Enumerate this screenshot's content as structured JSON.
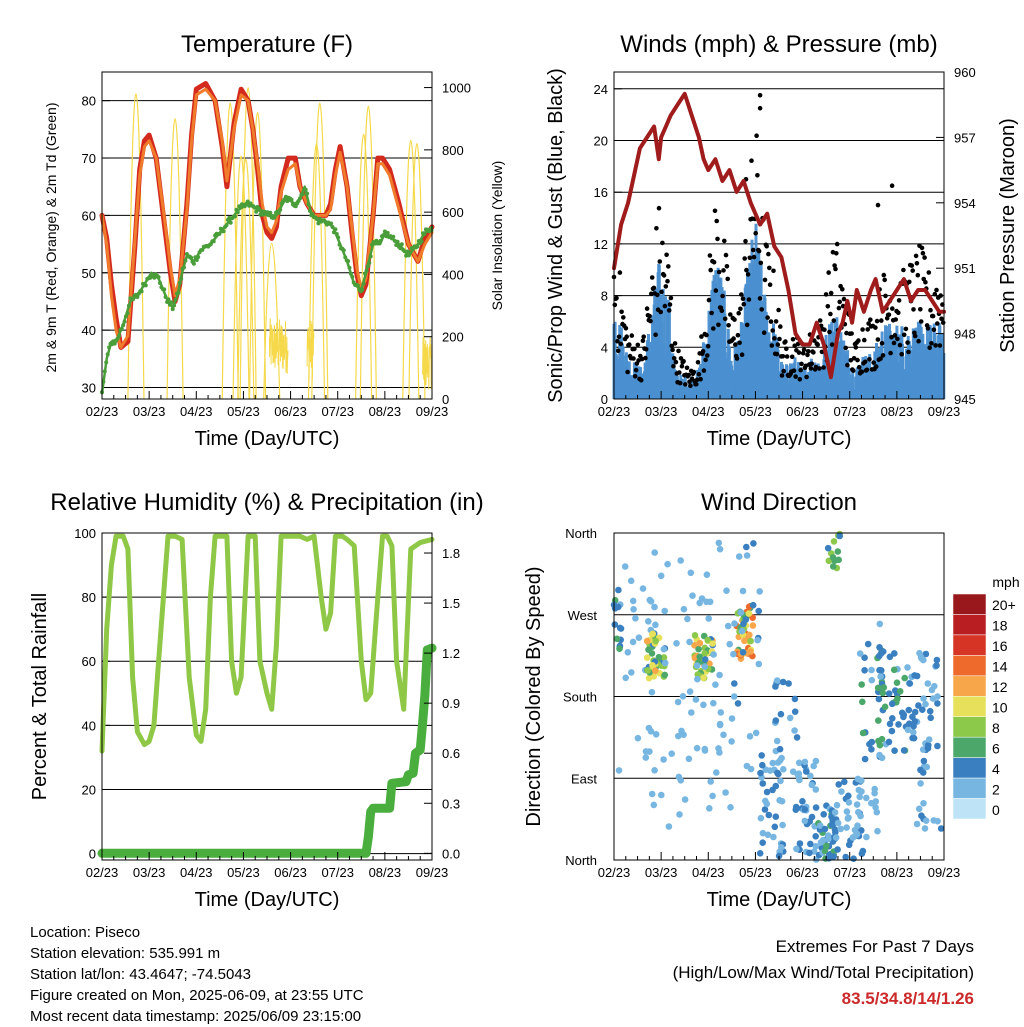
{
  "info": {
    "location": "Location: Piseco",
    "elevation": "Station elevation: 535.991 m",
    "latlon": "Station lat/lon: 43.4647; -74.5043",
    "created": "Figure created on Mon, 2025-06-09, at 23:55 UTC",
    "recent": "Most recent data timestamp: 2025/06/09 23:15:00"
  },
  "extremes": {
    "line1": "Extremes For Past 7 Days",
    "line2": "(High/Low/Max Wind/Total Precipitation)",
    "value": "83.5/34.8/14/1.26",
    "color": "#cc2a2a"
  },
  "chart_data": [
    {
      "type": "line",
      "title": "Temperature (F)",
      "xlabel": "Time (Day/UTC)",
      "ylabel": "2m & 9m T (Red, Orange) & 2m Td (Green)",
      "ylabel_right": "Solar Insolation (Yellow)",
      "x_ticks": [
        "02/23",
        "03/23",
        "04/23",
        "05/23",
        "06/23",
        "07/23",
        "08/23",
        "09/23"
      ],
      "x_range": [
        0,
        7
      ],
      "ylim": [
        28,
        85
      ],
      "y_ticks": [
        30,
        40,
        50,
        60,
        70,
        80
      ],
      "ylim_right": [
        0,
        1050
      ],
      "y_ticks_right": [
        0,
        200,
        400,
        600,
        800,
        1000
      ],
      "grid": true,
      "series": [
        {
          "color": "#d42a1e",
          "x": [
            0,
            0.1,
            0.2,
            0.3,
            0.4,
            0.55,
            0.7,
            0.8,
            0.9,
            1.0,
            1.15,
            1.3,
            1.45,
            1.55,
            1.65,
            1.8,
            1.9,
            2.0,
            2.2,
            2.4,
            2.55,
            2.65,
            2.8,
            2.95,
            3.1,
            3.2,
            3.3,
            3.4,
            3.5,
            3.6,
            3.7,
            3.8,
            3.95,
            4.1,
            4.2,
            4.35,
            4.5,
            4.65,
            4.75,
            4.85,
            4.95,
            5.05,
            5.2,
            5.3,
            5.4,
            5.5,
            5.6,
            5.75,
            5.85,
            5.95,
            6.1,
            6.3,
            6.5,
            6.7,
            6.85,
            7.0
          ],
          "values": [
            60,
            56,
            48,
            42,
            37,
            38,
            55,
            68,
            73,
            74,
            70,
            60,
            50,
            45,
            48,
            62,
            74,
            82,
            83,
            80,
            72,
            65,
            76,
            82,
            80,
            75,
            68,
            60,
            57,
            56,
            58,
            65,
            70,
            70,
            65,
            62,
            60,
            60,
            60,
            62,
            68,
            72,
            65,
            57,
            50,
            46,
            48,
            60,
            70,
            70,
            68,
            62,
            55,
            52,
            56,
            58
          ]
        },
        {
          "color": "#f07b2a",
          "x": [
            0,
            0.1,
            0.2,
            0.3,
            0.4,
            0.55,
            0.7,
            0.8,
            0.9,
            1.0,
            1.15,
            1.3,
            1.45,
            1.55,
            1.65,
            1.8,
            1.9,
            2.0,
            2.2,
            2.4,
            2.55,
            2.65,
            2.8,
            2.95,
            3.1,
            3.2,
            3.3,
            3.4,
            3.5,
            3.6,
            3.7,
            3.8,
            3.95,
            4.1,
            4.2,
            4.35,
            4.5,
            4.65,
            4.75,
            4.85,
            4.95,
            5.05,
            5.2,
            5.3,
            5.4,
            5.5,
            5.6,
            5.75,
            5.85,
            5.95,
            6.1,
            6.3,
            6.5,
            6.7,
            6.85,
            7.0
          ],
          "values": [
            60,
            55,
            46,
            40,
            37,
            39,
            56,
            67,
            72,
            73,
            70,
            61,
            51,
            46,
            49,
            61,
            73,
            81,
            82,
            80,
            73,
            66,
            75,
            81,
            80,
            75,
            69,
            62,
            58,
            57,
            59,
            64,
            68,
            69,
            65,
            62,
            60,
            60,
            60,
            61,
            67,
            71,
            65,
            58,
            51,
            47,
            49,
            60,
            69,
            69,
            67,
            61,
            55,
            52,
            55,
            57
          ]
        },
        {
          "color": "#4a9e3a",
          "x": [
            0,
            0.1,
            0.2,
            0.3,
            0.45,
            0.6,
            0.75,
            0.9,
            1.05,
            1.2,
            1.4,
            1.5,
            1.6,
            1.7,
            1.8,
            1.95,
            2.1,
            2.3,
            2.5,
            2.7,
            2.9,
            3.1,
            3.3,
            3.5,
            3.7,
            3.9,
            4.1,
            4.2,
            4.3,
            4.45,
            4.6,
            4.75,
            4.9,
            5.05,
            5.2,
            5.35,
            5.5,
            5.6,
            5.75,
            5.9,
            6.0,
            6.15,
            6.3,
            6.5,
            6.7,
            6.85,
            7.0
          ],
          "values": [
            29,
            35,
            38,
            38,
            41,
            45,
            46,
            48,
            50,
            49,
            45,
            44,
            46,
            50,
            53,
            52,
            54,
            55,
            57,
            59,
            61,
            62,
            61,
            60,
            60,
            63,
            62,
            63,
            65,
            60,
            59,
            59,
            58,
            55,
            52,
            48,
            47,
            50,
            55,
            55,
            57,
            56,
            55,
            53,
            55,
            57,
            58
          ]
        }
      ],
      "solar": {
        "color": "#f5d94a",
        "peaks": [
          [
            0.72,
            980
          ],
          [
            1.55,
            900
          ],
          [
            2.72,
            950
          ],
          [
            2.95,
            780
          ],
          [
            3.05,
            770
          ],
          [
            3.1,
            1000
          ],
          [
            3.3,
            920
          ],
          [
            3.6,
            500
          ],
          [
            4.55,
            820
          ],
          [
            4.62,
            950
          ],
          [
            5.55,
            850
          ],
          [
            5.65,
            940
          ],
          [
            6.55,
            830
          ],
          [
            6.68,
            820
          ]
        ],
        "bursts": [
          [
            3.55,
            3.95,
            80,
            260
          ],
          [
            4.35,
            4.5,
            60,
            260
          ],
          [
            6.8,
            7.0,
            30,
            200
          ]
        ]
      }
    },
    {
      "type": "scatter",
      "title": "Winds (mph) & Pressure (mb)",
      "xlabel": "Time (Day/UTC)",
      "ylabel": "Sonic/Prop Wind & Gust (Blue, Black)",
      "ylabel_right": "Station Pressure (Maroon)",
      "x_ticks": [
        "02/23",
        "03/23",
        "04/23",
        "05/23",
        "06/23",
        "07/23",
        "08/23",
        "09/23"
      ],
      "ylim": [
        0,
        25.3
      ],
      "y_ticks": [
        0,
        4,
        8,
        12,
        16,
        20,
        24
      ],
      "ylim_right": [
        945,
        960
      ],
      "y_ticks_right": [
        945,
        948,
        951,
        954,
        957,
        960
      ],
      "grid": true,
      "gust_color": "#000000",
      "wind_color": "#4a90d0",
      "pressure_color": "#a01c1c",
      "pressure": {
        "x": [
          0,
          0.15,
          0.3,
          0.45,
          0.55,
          0.7,
          0.85,
          0.95,
          1.0,
          1.1,
          1.2,
          1.35,
          1.5,
          1.65,
          1.8,
          1.9,
          2.0,
          2.15,
          2.3,
          2.45,
          2.6,
          2.75,
          2.9,
          3.0,
          3.1,
          3.25,
          3.4,
          3.55,
          3.7,
          3.85,
          4.0,
          4.15,
          4.3,
          4.45,
          4.6,
          4.75,
          4.85,
          4.95,
          5.05,
          5.15,
          5.3,
          5.45,
          5.55,
          5.7,
          5.85,
          6.0,
          6.15,
          6.3,
          6.45,
          6.6,
          6.75,
          6.9,
          7.0
        ],
        "values": [
          951,
          953,
          954,
          955.5,
          956.5,
          957,
          957.5,
          956,
          957,
          957.5,
          958,
          958.5,
          959,
          958,
          957,
          956,
          955.5,
          956,
          955,
          955.5,
          954.5,
          955,
          954,
          953.5,
          953,
          953.5,
          952,
          951.5,
          950,
          948,
          947.5,
          947.5,
          948.5,
          947.5,
          946,
          948,
          948.5,
          949.5,
          948.5,
          950,
          949,
          950,
          950.5,
          949,
          949.5,
          950,
          950.5,
          949.5,
          950,
          950,
          949.5,
          949,
          949
        ]
      },
      "gust_envelope": {
        "x": [
          0,
          0.3,
          0.6,
          0.8,
          0.95,
          1.15,
          1.3,
          1.45,
          1.6,
          1.8,
          2.0,
          2.15,
          2.3,
          2.5,
          2.7,
          2.85,
          3.0,
          3.2,
          3.4,
          3.6,
          3.8,
          4.0,
          4.2,
          4.4,
          4.55,
          4.7,
          4.9,
          5.1,
          5.3,
          5.5,
          5.7,
          5.9,
          6.1,
          6.3,
          6.5,
          6.7,
          6.9,
          7.0
        ],
        "values": [
          12,
          5,
          4,
          10,
          14,
          11,
          4,
          3,
          2,
          3,
          9,
          15,
          13,
          6,
          8,
          15,
          20,
          12,
          9,
          4,
          5,
          4,
          5,
          6,
          9,
          12,
          8,
          4,
          6,
          6,
          9,
          10,
          9,
          10,
          11,
          9,
          10,
          9
        ]
      },
      "wind_envelope": {
        "x": [
          0,
          0.3,
          0.6,
          0.8,
          0.95,
          1.15,
          1.3,
          1.45,
          1.6,
          1.8,
          2.0,
          2.15,
          2.3,
          2.5,
          2.7,
          2.85,
          3.0,
          3.2,
          3.4,
          3.6,
          3.8,
          4.0,
          4.2,
          4.4,
          4.55,
          4.7,
          4.9,
          5.1,
          5.3,
          5.5,
          5.7,
          5.9,
          6.1,
          6.3,
          6.5,
          6.7,
          6.9,
          7.0
        ],
        "values": [
          7,
          3,
          2,
          6,
          9,
          7,
          2,
          1.5,
          1.5,
          2,
          6,
          10,
          8,
          3,
          5,
          9,
          12,
          7,
          5,
          2,
          3,
          2,
          3,
          3,
          5,
          6,
          4,
          2,
          3,
          3,
          5,
          5,
          5,
          5,
          5,
          5,
          5,
          4
        ]
      }
    },
    {
      "type": "line",
      "title": "Relative Humidity (%) & Precipitation (in)",
      "xlabel": "Time (Day/UTC)",
      "ylabel": "Percent & Total Rainfall",
      "x_ticks": [
        "02/23",
        "03/23",
        "04/23",
        "05/23",
        "06/23",
        "07/23",
        "08/23",
        "09/23"
      ],
      "ylim": [
        -2,
        100
      ],
      "y_ticks": [
        0,
        20,
        40,
        60,
        80,
        100
      ],
      "ylim_right": [
        -0.04,
        1.92
      ],
      "y_ticks_right": [
        "0.0",
        "0.3",
        "0.6",
        "0.9",
        "1.2",
        "1.5",
        "1.8"
      ],
      "grid": true,
      "series": [
        {
          "name": "RH",
          "color": "#8fc846",
          "x": [
            0,
            0.1,
            0.2,
            0.3,
            0.45,
            0.55,
            0.65,
            0.75,
            0.9,
            1.0,
            1.1,
            1.2,
            1.4,
            1.55,
            1.7,
            1.85,
            2.0,
            2.1,
            2.2,
            2.3,
            2.4,
            2.55,
            2.65,
            2.75,
            2.85,
            2.95,
            3.1,
            3.25,
            3.35,
            3.5,
            3.6,
            3.7,
            3.8,
            3.95,
            4.1,
            4.2,
            4.35,
            4.5,
            4.65,
            4.75,
            4.85,
            4.95,
            5.1,
            5.2,
            5.35,
            5.5,
            5.6,
            5.7,
            5.8,
            5.95,
            6.05,
            6.15,
            6.25,
            6.4,
            6.55,
            6.75,
            7.0
          ],
          "values": [
            32,
            70,
            90,
            99,
            99,
            95,
            55,
            38,
            34,
            35,
            40,
            60,
            99,
            99,
            98,
            55,
            37,
            35,
            45,
            80,
            99,
            99,
            99,
            60,
            50,
            55,
            99,
            99,
            60,
            50,
            45,
            65,
            99,
            99,
            99,
            99,
            98,
            99,
            80,
            70,
            75,
            99,
            99,
            98,
            96,
            60,
            48,
            50,
            70,
            99,
            99,
            96,
            60,
            45,
            95,
            97,
            98
          ]
        },
        {
          "name": "Precip",
          "color": "#4aae3e",
          "x": [
            0,
            5.6,
            5.65,
            5.7,
            5.75,
            6.1,
            6.15,
            6.45,
            6.5,
            6.6,
            6.65,
            6.75,
            6.8,
            6.85,
            6.9,
            7.0
          ],
          "values": [
            0,
            0,
            0.1,
            0.25,
            0.27,
            0.27,
            0.42,
            0.43,
            0.47,
            0.48,
            0.6,
            0.62,
            0.78,
            0.95,
            1.22,
            1.23
          ]
        }
      ]
    },
    {
      "type": "scatter",
      "title": "Wind Direction",
      "xlabel": "Time (Day/UTC)",
      "ylabel": "Direction (Colored By Speed)",
      "x_ticks": [
        "02/23",
        "03/23",
        "04/23",
        "05/23",
        "06/23",
        "07/23",
        "08/23",
        "09/23"
      ],
      "y_ticks": [
        "North",
        "East",
        "South",
        "West",
        "North"
      ],
      "ylim": [
        0,
        360
      ],
      "grid": true,
      "colorbar_title": "mph",
      "colorbar_labels": [
        "20+",
        "18",
        "16",
        "14",
        "12",
        "10",
        "8",
        "6",
        "4",
        "2",
        "0"
      ],
      "colorbar_colors": [
        "#99181c",
        "#b81e22",
        "#d63425",
        "#ee6a2c",
        "#f7a64a",
        "#e6e05a",
        "#8cc84a",
        "#4ca86a",
        "#3a7fc0",
        "#78b6e2",
        "#bfe3f6"
      ]
    }
  ]
}
